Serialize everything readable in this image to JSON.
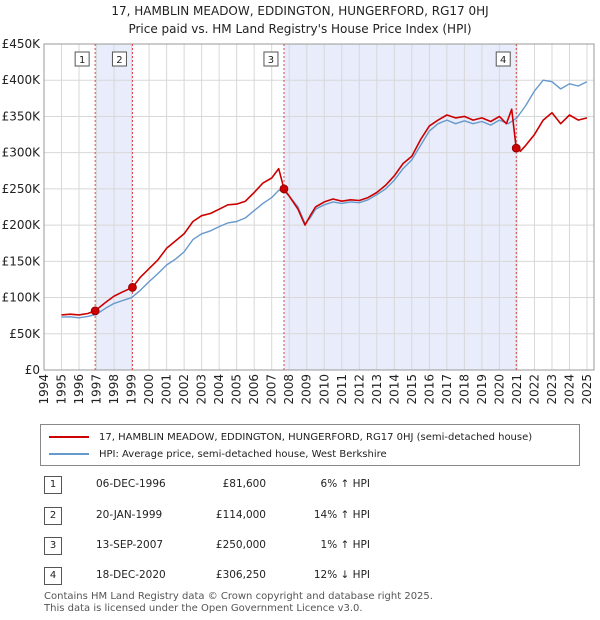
{
  "title_line1": "17, HAMBLIN MEADOW, EDDINGTON, HUNGERFORD, RG17 0HJ",
  "title_line2": "Price paid vs. HM Land Registry's House Price Index (HPI)",
  "chart_data": {
    "type": "line",
    "title": "17, HAMBLIN MEADOW, EDDINGTON, HUNGERFORD, RG17 0HJ — Price paid vs. HM Land Registry's House Price Index (HPI)",
    "xlabel": "",
    "ylabel": "",
    "xlim": [
      1994,
      2025.4
    ],
    "ylim": [
      0,
      450000
    ],
    "y_ticks": [
      0,
      50000,
      100000,
      150000,
      200000,
      250000,
      300000,
      350000,
      400000,
      450000
    ],
    "y_tick_labels": [
      "£0",
      "£50K",
      "£100K",
      "£150K",
      "£200K",
      "£250K",
      "£300K",
      "£350K",
      "£400K",
      "£450K"
    ],
    "x_ticks": [
      1994,
      1995,
      1996,
      1997,
      1998,
      1999,
      2000,
      2001,
      2002,
      2003,
      2004,
      2005,
      2006,
      2007,
      2008,
      2009,
      2010,
      2011,
      2012,
      2013,
      2014,
      2015,
      2016,
      2017,
      2018,
      2019,
      2020,
      2021,
      2022,
      2023,
      2024,
      2025
    ],
    "x_tick_labels": [
      "1994",
      "1995",
      "1996",
      "1997",
      "1998",
      "1999",
      "2000",
      "2001",
      "2002",
      "2003",
      "2004",
      "2005",
      "2006",
      "2007",
      "2008",
      "2009",
      "2010",
      "2011",
      "2012",
      "2013",
      "2014",
      "2015",
      "2016",
      "2017",
      "2018",
      "2019",
      "2020",
      "2021",
      "2022",
      "2023",
      "2024",
      "2025"
    ],
    "grid": true,
    "shaded_ranges": [
      [
        1996.92,
        1999.05
      ],
      [
        2007.7,
        2020.96
      ]
    ],
    "series": [
      {
        "name": "17, HAMBLIN MEADOW, EDDINGTON, HUNGERFORD, RG17 0HJ (semi-detached house)",
        "color": "#cc0000",
        "x": [
          1995.0,
          1995.5,
          1996.0,
          1996.5,
          1996.92,
          1997.5,
          1998.0,
          1998.5,
          1999.05,
          1999.5,
          2000.0,
          2000.5,
          2001.0,
          2001.5,
          2002.0,
          2002.5,
          2003.0,
          2003.5,
          2004.0,
          2004.5,
          2005.0,
          2005.5,
          2006.0,
          2006.5,
          2007.0,
          2007.4,
          2007.7,
          2008.0,
          2008.5,
          2008.9,
          2009.2,
          2009.5,
          2010.0,
          2010.5,
          2011.0,
          2011.5,
          2012.0,
          2012.5,
          2013.0,
          2013.5,
          2014.0,
          2014.5,
          2015.0,
          2015.5,
          2016.0,
          2016.5,
          2017.0,
          2017.5,
          2018.0,
          2018.5,
          2019.0,
          2019.5,
          2020.0,
          2020.4,
          2020.7,
          2020.96,
          2021.2,
          2021.5,
          2022.0,
          2022.5,
          2023.0,
          2023.5,
          2024.0,
          2024.5,
          2025.0
        ],
        "values": [
          76000,
          77000,
          76000,
          78000,
          81600,
          93000,
          102000,
          108000,
          114000,
          128000,
          140000,
          152000,
          168000,
          178000,
          188000,
          205000,
          213000,
          216000,
          222000,
          228000,
          229000,
          233000,
          245000,
          258000,
          265000,
          278000,
          250000,
          240000,
          222000,
          200000,
          213000,
          225000,
          232000,
          236000,
          233000,
          235000,
          234000,
          238000,
          245000,
          255000,
          268000,
          285000,
          295000,
          318000,
          337000,
          345000,
          352000,
          348000,
          350000,
          345000,
          348000,
          343000,
          350000,
          340000,
          360000,
          306250,
          302000,
          310000,
          325000,
          345000,
          355000,
          340000,
          352000,
          345000,
          348000
        ]
      },
      {
        "name": "HPI: Average price, semi-detached house, West Berkshire",
        "color": "#6699cc",
        "x": [
          1995.0,
          1995.5,
          1996.0,
          1996.5,
          1997.0,
          1997.5,
          1998.0,
          1998.5,
          1999.0,
          1999.5,
          2000.0,
          2000.5,
          2001.0,
          2001.5,
          2002.0,
          2002.5,
          2003.0,
          2003.5,
          2004.0,
          2004.5,
          2005.0,
          2005.5,
          2006.0,
          2006.5,
          2007.0,
          2007.4,
          2007.7,
          2008.0,
          2008.5,
          2008.9,
          2009.2,
          2009.5,
          2010.0,
          2010.5,
          2011.0,
          2011.5,
          2012.0,
          2012.5,
          2013.0,
          2013.5,
          2014.0,
          2014.5,
          2015.0,
          2015.5,
          2016.0,
          2016.5,
          2017.0,
          2017.5,
          2018.0,
          2018.5,
          2019.0,
          2019.5,
          2020.0,
          2020.5,
          2021.0,
          2021.5,
          2022.0,
          2022.5,
          2023.0,
          2023.5,
          2024.0,
          2024.5,
          2025.0
        ],
        "values": [
          73000,
          73500,
          72000,
          74000,
          77000,
          85000,
          92000,
          96000,
          100000,
          110000,
          122000,
          133000,
          145000,
          153000,
          163000,
          180000,
          188000,
          192000,
          198000,
          203000,
          205000,
          210000,
          220000,
          230000,
          238000,
          248000,
          247000,
          240000,
          225000,
          202000,
          210000,
          222000,
          228000,
          232000,
          230000,
          232000,
          231000,
          235000,
          242000,
          250000,
          262000,
          278000,
          290000,
          310000,
          330000,
          340000,
          345000,
          340000,
          344000,
          340000,
          343000,
          338000,
          345000,
          340000,
          348000,
          365000,
          385000,
          400000,
          398000,
          388000,
          395000,
          392000,
          398000
        ]
      }
    ],
    "sale_points": [
      {
        "label": "1",
        "x": 1996.92,
        "value": 81600
      },
      {
        "label": "2",
        "x": 1999.05,
        "value": 114000
      },
      {
        "label": "3",
        "x": 2007.7,
        "value": 250000
      },
      {
        "label": "4",
        "x": 2020.96,
        "value": 306250
      }
    ]
  },
  "legend": {
    "property_label": "17, HAMBLIN MEADOW, EDDINGTON, HUNGERFORD, RG17 0HJ (semi-detached house)",
    "hpi_label": "HPI: Average price, semi-detached house, West Berkshire"
  },
  "transactions": [
    {
      "num": "1",
      "date": "06-DEC-1996",
      "price": "£81,600",
      "hpi": "6% ↑ HPI"
    },
    {
      "num": "2",
      "date": "20-JAN-1999",
      "price": "£114,000",
      "hpi": "14% ↑ HPI"
    },
    {
      "num": "3",
      "date": "13-SEP-2007",
      "price": "£250,000",
      "hpi": "1% ↑ HPI"
    },
    {
      "num": "4",
      "date": "18-DEC-2020",
      "price": "£306,250",
      "hpi": "12% ↓ HPI"
    }
  ],
  "footer_line1": "Contains HM Land Registry data © Crown copyright and database right 2025.",
  "footer_line2": "This data is licensed under the Open Government Licence v3.0.",
  "colors": {
    "red": "#cc0000",
    "blue": "#6699cc",
    "shade": "#e8ecfb",
    "grid": "#d8d8d8"
  }
}
